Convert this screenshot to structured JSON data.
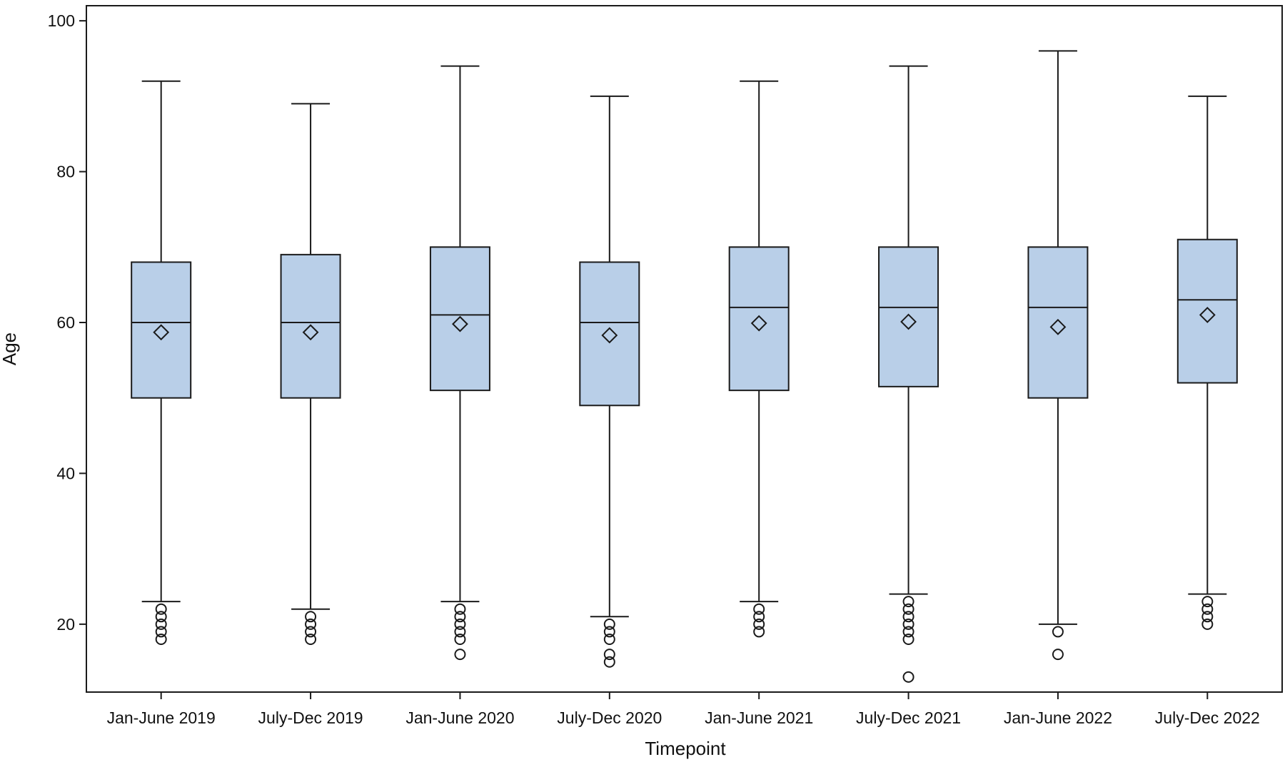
{
  "chart_data": {
    "type": "boxplot",
    "title": "",
    "xlabel": "Timepoint",
    "ylabel": "Age",
    "ylim": [
      11,
      102
    ],
    "yticks": [
      20,
      40,
      60,
      80,
      100
    ],
    "grid": false,
    "legend": "none",
    "colors": {
      "box_fill": "#b9cfe8",
      "stroke": "#1a1a1a",
      "background": "#ffffff"
    },
    "categories": [
      "Jan-June 2019",
      "July-Dec 2019",
      "Jan-June 2020",
      "July-Dec 2020",
      "Jan-June 2021",
      "July-Dec 2021",
      "Jan-June 2022",
      "July-Dec 2022"
    ],
    "boxes": [
      {
        "category": "Jan-June 2019",
        "whisker_low": 23,
        "q1": 50,
        "median": 60,
        "q3": 68,
        "whisker_high": 92,
        "mean": 58.7,
        "outliers": [
          22,
          21,
          20,
          19,
          18
        ]
      },
      {
        "category": "July-Dec 2019",
        "whisker_low": 22,
        "q1": 50,
        "median": 60,
        "q3": 69,
        "whisker_high": 89,
        "mean": 58.7,
        "outliers": [
          21,
          20,
          19,
          18
        ]
      },
      {
        "category": "Jan-June 2020",
        "whisker_low": 23,
        "q1": 51,
        "median": 61,
        "q3": 70,
        "whisker_high": 94,
        "mean": 59.8,
        "outliers": [
          22,
          21,
          20,
          19,
          18,
          16
        ]
      },
      {
        "category": "July-Dec 2020",
        "whisker_low": 21,
        "q1": 49,
        "median": 60,
        "q3": 68,
        "whisker_high": 90,
        "mean": 58.3,
        "outliers": [
          20,
          19,
          18,
          16,
          15
        ]
      },
      {
        "category": "Jan-June 2021",
        "whisker_low": 23,
        "q1": 51,
        "median": 62,
        "q3": 70,
        "whisker_high": 92,
        "mean": 59.9,
        "outliers": [
          22,
          21,
          20,
          19
        ]
      },
      {
        "category": "July-Dec 2021",
        "whisker_low": 24,
        "q1": 51.5,
        "median": 62,
        "q3": 70,
        "whisker_high": 94,
        "mean": 60.1,
        "outliers": [
          23,
          22,
          21,
          20,
          19,
          18,
          13
        ]
      },
      {
        "category": "Jan-June 2022",
        "whisker_low": 20,
        "q1": 50,
        "median": 62,
        "q3": 70,
        "whisker_high": 96,
        "mean": 59.4,
        "outliers": [
          19,
          16
        ]
      },
      {
        "category": "July-Dec 2022",
        "whisker_low": 24,
        "q1": 52,
        "median": 63,
        "q3": 71,
        "whisker_high": 90,
        "mean": 61,
        "outliers": [
          23,
          22,
          21,
          20
        ]
      }
    ]
  }
}
